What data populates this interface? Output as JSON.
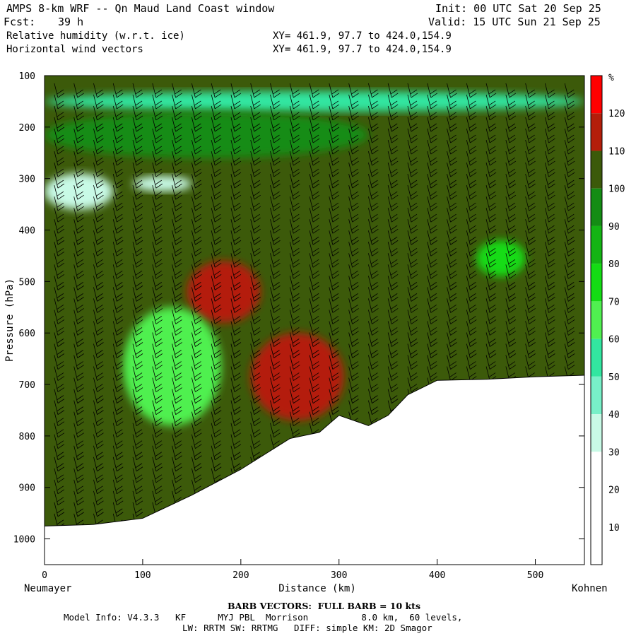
{
  "header": {
    "title": "AMPS 8-km WRF -- Qn Maud Land Coast window",
    "forecast_label": "Fcst:",
    "forecast_hours": "39 h",
    "init": "Init: 00 UTC Sat 20 Sep 25",
    "valid": "Valid: 15 UTC Sun 21 Sep 25",
    "field1": "Relative humidity (w.r.t. ice)",
    "field2": "Horizontal wind vectors",
    "xy1": "XY= 461.9, 97.7 to 424.0,154.9",
    "xy2": "XY= 461.9, 97.7 to 424.0,154.9"
  },
  "chart_data": {
    "type": "heatmap",
    "xlabel": "Distance (km)",
    "ylabel": "Pressure (hPa)",
    "xlim": [
      0,
      550
    ],
    "ylim": [
      1050,
      100
    ],
    "x_ticks": [
      0,
      100,
      200,
      300,
      400,
      500
    ],
    "y_ticks": [
      100,
      200,
      300,
      400,
      500,
      600,
      700,
      800,
      900,
      1000
    ],
    "x_endpoints": {
      "left": "Neumayer",
      "right": "Kohnen"
    },
    "colorbar": {
      "unit": "%",
      "levels": [
        10,
        20,
        30,
        40,
        50,
        60,
        70,
        80,
        90,
        100,
        110,
        120
      ],
      "colors": [
        "#ffffff",
        "#ffffff",
        "#ffffff",
        "#c8fae6",
        "#78f0c8",
        "#32e6a0",
        "#50f050",
        "#14dc14",
        "#14b414",
        "#148c14",
        "#3c5a0a",
        "#b41e0a",
        "#ff0000"
      ]
    },
    "terrain_surface": [
      [
        0,
        975
      ],
      [
        50,
        972
      ],
      [
        100,
        960
      ],
      [
        150,
        915
      ],
      [
        200,
        865
      ],
      [
        250,
        805
      ],
      [
        280,
        793
      ],
      [
        300,
        760
      ],
      [
        330,
        780
      ],
      [
        350,
        760
      ],
      [
        370,
        720
      ],
      [
        400,
        692
      ],
      [
        450,
        690
      ],
      [
        500,
        685
      ],
      [
        550,
        682
      ]
    ],
    "humidity_regions": [
      {
        "band": "30-50",
        "x": [
          0,
          70
        ],
        "p": [
          290,
          360
        ]
      },
      {
        "band": "30-50",
        "x": [
          90,
          150
        ],
        "p": [
          295,
          325
        ]
      },
      {
        "band": "50-80",
        "x": [
          0,
          550
        ],
        "p": [
          130,
          170
        ]
      },
      {
        "band": "90-100",
        "x": [
          0,
          330
        ],
        "p": [
          170,
          260
        ]
      },
      {
        "band": "110-120",
        "x": [
          145,
          220
        ],
        "p": [
          460,
          580
        ]
      },
      {
        "band": "110-120",
        "x": [
          210,
          305
        ],
        "p": [
          600,
          770
        ]
      },
      {
        "band": "60-80",
        "x": [
          80,
          180
        ],
        "p": [
          550,
          780
        ]
      },
      {
        "band": "70-80",
        "x": [
          440,
          490
        ],
        "p": [
          420,
          490
        ]
      }
    ],
    "wind_vectors": "wind barbs along the section",
    "barb_note": "BARB VECTORS:  FULL BARB = 10 kts"
  },
  "footer": {
    "model_info": "Model Info: V4.3.3   KF      MYJ PBL  Morrison          8.0 km,  60 levels,",
    "model_info2": "LW: RRTM SW: RRTMG   DIFF: simple KM: 2D Smagor"
  }
}
